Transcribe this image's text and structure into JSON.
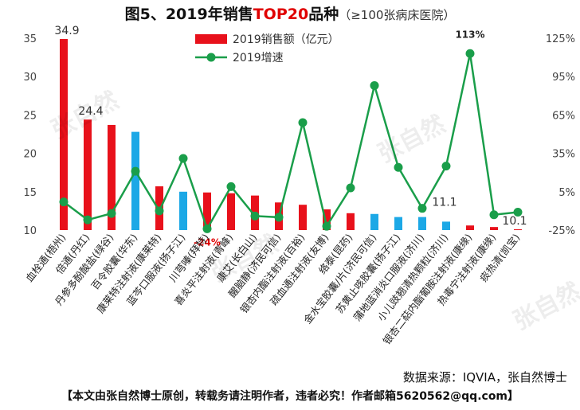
{
  "title": {
    "prefix": "图5、2019年销售",
    "highlight": "TOP20",
    "suffix": "品种",
    "subtitle": "（≥100张病床医院）"
  },
  "source": "数据来源：IQVIA，张自然博士",
  "footer": "【本文由张自然博士原创，转载务请注明作者，违者必究！作者邮箱5620562@qq.com】",
  "watermark": "张自然",
  "colors": {
    "bar_red": "#e8111b",
    "bar_blue": "#1ca8e6",
    "line_green": "#1a9e4a",
    "axis": "#444444",
    "neg_label": "#e00000"
  },
  "chart_data": {
    "type": "bar+line",
    "categories": [
      "血栓通(梧州)",
      "倍通(丹红)",
      "丹参多酚酸盐(绿谷)",
      "百令胶囊(华东)",
      "康莱特注射液(康莱特)",
      "蓝芩口服液(扬子江)",
      "川芎嗪(拜特)",
      "喜炎平注射液(青峰)",
      "康艾(长白山)",
      "醒脑静(济民可信)",
      "银杏内酯注射液(百裕)",
      "疏血通注射液(友博)",
      "络泰(昆药)",
      "金水宝胶囊/片(济民可信)",
      "苏黄止咳胶囊(扬子江)",
      "蒲地蓝消炎口服液(济川)",
      "小儿豉翘清热颗粒(济川)",
      "银杏二萜内酯葡胺注射液(康缘)",
      "热毒宁注射液(康缘)",
      "痰热清(凯宝)"
    ],
    "series": [
      {
        "name": "2019销售额（亿元）",
        "type": "bar",
        "values": [
          34.9,
          24.4,
          23.7,
          22.8,
          15.7,
          15.0,
          14.9,
          14.8,
          14.5,
          13.6,
          13.3,
          12.7,
          12.2,
          12.1,
          11.7,
          11.7,
          11.1,
          10.6,
          10.4,
          10.1
        ],
        "bar_colors": [
          "red",
          "red",
          "red",
          "blue",
          "red",
          "blue",
          "red",
          "red",
          "red",
          "red",
          "red",
          "red",
          "red",
          "blue",
          "blue",
          "blue",
          "blue",
          "red",
          "red",
          "red"
        ]
      },
      {
        "name": "2019增速",
        "type": "line",
        "axis": "right",
        "values": [
          -3,
          -17,
          -12,
          21,
          -10,
          31,
          -24,
          9,
          -14,
          -15,
          59,
          -22,
          8,
          88,
          24,
          -8,
          25,
          113,
          -13,
          -11
        ]
      }
    ],
    "value_labels": [
      {
        "series": 0,
        "index": 0,
        "text": "34.9"
      },
      {
        "series": 0,
        "index": 1,
        "text": "24.4"
      },
      {
        "series": 0,
        "index": 16,
        "text": "11.1"
      },
      {
        "series": 0,
        "index": 19,
        "text": "10.1"
      },
      {
        "series": 1,
        "index": 6,
        "text": "-24%"
      },
      {
        "series": 1,
        "index": 17,
        "text": "113%"
      }
    ],
    "left_axis": {
      "ylim": [
        10,
        35
      ],
      "ticks": [
        "10",
        "15",
        "20",
        "25",
        "30",
        "35"
      ]
    },
    "right_axis": {
      "ylim": [
        -25,
        125
      ],
      "ticks": [
        "-25%",
        "5%",
        "35%",
        "65%",
        "95%",
        "125%"
      ]
    },
    "legend": {
      "position": "top-center",
      "entries": [
        "2019销售额（亿元）",
        "2019增速"
      ]
    }
  }
}
